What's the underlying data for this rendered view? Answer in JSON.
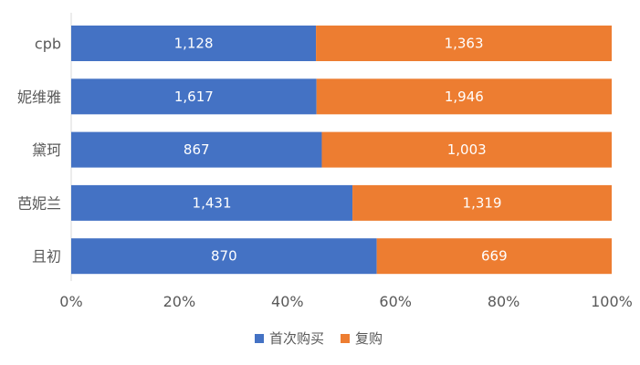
{
  "chart_data": {
    "type": "bar",
    "orientation": "horizontal",
    "stacking": "percent",
    "title": "",
    "xlabel": "",
    "ylabel": "",
    "categories": [
      "cpb",
      "妮维雅",
      "黛珂",
      "芭妮兰",
      "且初"
    ],
    "series": [
      {
        "name": "首次购买",
        "color": "#4472C4",
        "values": [
          1128,
          1617,
          867,
          1431,
          870
        ]
      },
      {
        "name": "复购",
        "color": "#ED7D31",
        "values": [
          1363,
          1946,
          1003,
          1319,
          669
        ]
      }
    ],
    "xlim": [
      0,
      1
    ],
    "x_ticks": [
      "0%",
      "20%",
      "40%",
      "60%",
      "80%",
      "100%"
    ],
    "grid": false,
    "legend": {
      "position": "bottom"
    }
  }
}
